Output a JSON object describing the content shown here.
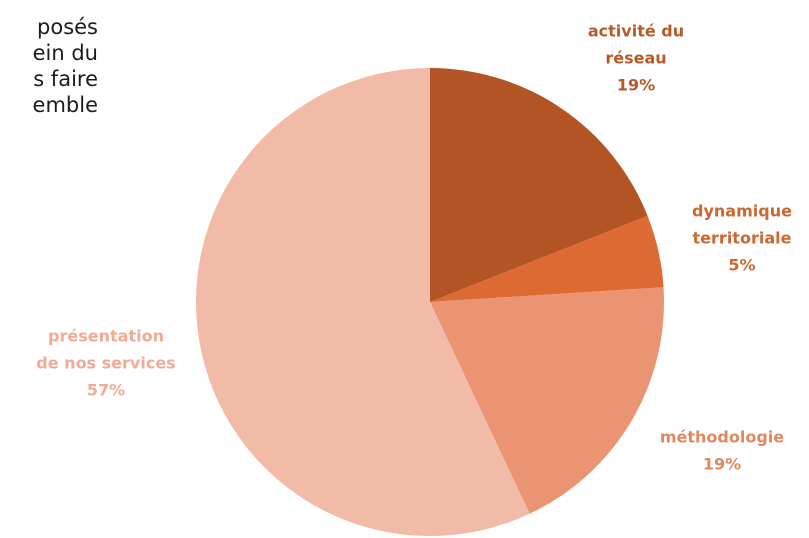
{
  "text_fragment": {
    "lines": [
      "posés",
      "ein du",
      "s faire",
      "emble"
    ]
  },
  "chart_data": {
    "type": "pie",
    "title": "",
    "slices": [
      {
        "label_lines": [
          "activité du",
          "réseau"
        ],
        "percent_label": "19%",
        "value": 19,
        "color": "#b25423",
        "label_color": "#b85a27"
      },
      {
        "label_lines": [
          "dynamique",
          "territoriale"
        ],
        "percent_label": "5%",
        "value": 5,
        "color": "#de6a33",
        "label_color": "#c9682f"
      },
      {
        "label_lines": [
          "méthodologie"
        ],
        "percent_label": "19%",
        "value": 19,
        "color": "#ea9473",
        "label_color": "#e2875f"
      },
      {
        "label_lines": [
          "présentation",
          "de nos services"
        ],
        "percent_label": "57%",
        "value": 57,
        "color": "#f1bba8",
        "label_color": "#f0ab94"
      }
    ]
  }
}
